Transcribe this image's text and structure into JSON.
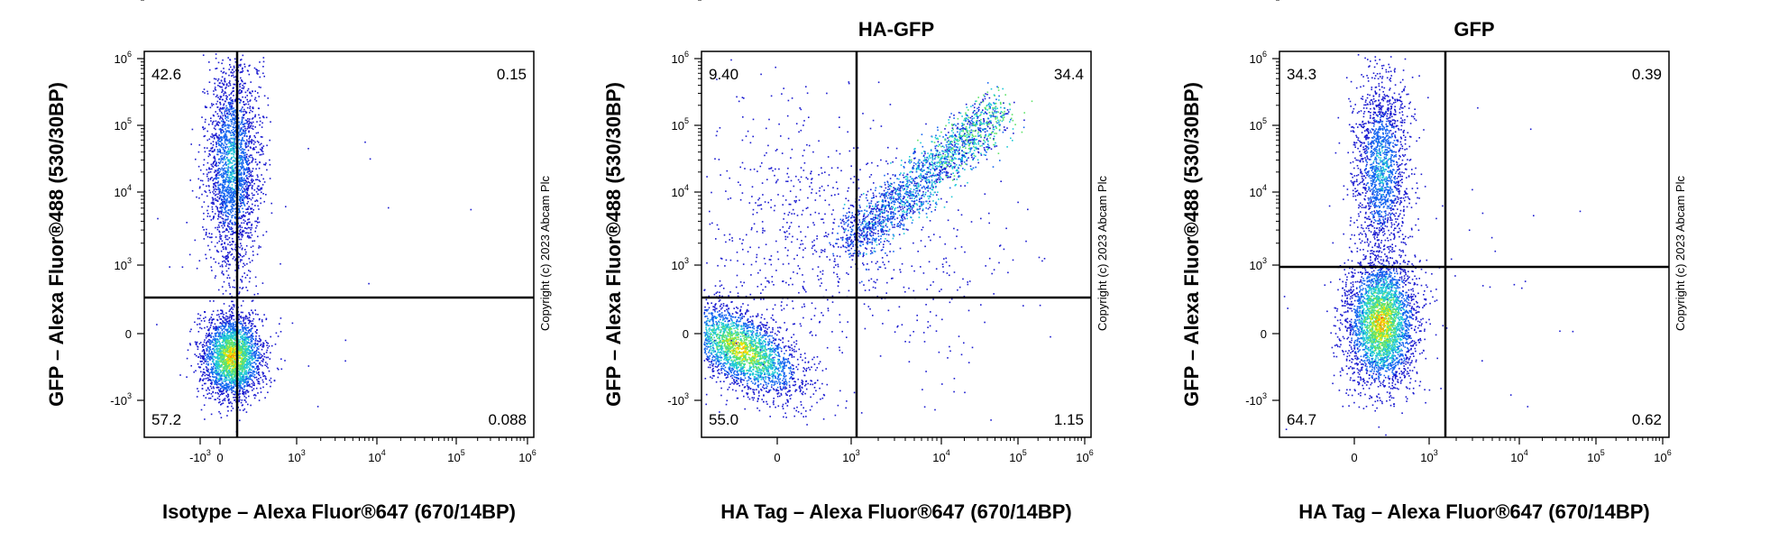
{
  "figure": {
    "copyright": "Copyright (c) 2023 Abcam Plc"
  },
  "chart_data": [
    {
      "type": "scatter",
      "title": "",
      "xlabel": "Isotype – Alexa Fluor®647 (670/14BP)",
      "ylabel": "GFP – Alexa Fluor®488 (530/30BP)",
      "x_ticks": [
        "-10^3",
        "0",
        "10^3",
        "10^4",
        "10^5",
        "10^6"
      ],
      "y_ticks": [
        "-10^3",
        "0",
        "10^3",
        "10^4",
        "10^5",
        "10^6"
      ],
      "x_scale": "biexponential",
      "y_scale": "biexponential",
      "gate": {
        "x": 1000,
        "y": 400
      },
      "quadrants": {
        "upper_left": "42.6",
        "upper_right": "0.15",
        "lower_left": "57.2",
        "lower_right": "0.088"
      },
      "populations": [
        {
          "description": "upper-left cluster",
          "x_center": 250,
          "y_center": 15000,
          "fraction": 0.426
        },
        {
          "description": "lower-left cluster",
          "x_center": 250,
          "y_center": -700,
          "fraction": 0.572
        }
      ]
    },
    {
      "type": "scatter",
      "title": "HA-GFP",
      "xlabel": "HA Tag – Alexa Fluor®647 (670/14BP)",
      "ylabel": "GFP – Alexa Fluor®488 (530/30BP)",
      "x_ticks": [
        "0",
        "10^3",
        "10^4",
        "10^5",
        "10^6"
      ],
      "y_ticks": [
        "-10^3",
        "0",
        "10^3",
        "10^4",
        "10^5",
        "10^6"
      ],
      "x_scale": "biexponential",
      "y_scale": "biexponential",
      "gate": {
        "x": 1000,
        "y": 400
      },
      "quadrants": {
        "upper_left": "9.40",
        "upper_right": "34.4",
        "lower_left": "55.0",
        "lower_right": "1.15"
      },
      "populations": [
        {
          "description": "double-negative cluster",
          "x_center": -300,
          "y_center": -400,
          "fraction": 0.55
        },
        {
          "description": "diagonal HA+/GFP+ population",
          "x_range": [
            1000,
            100000
          ],
          "y_range": [
            1000,
            60000
          ],
          "fraction": 0.344
        },
        {
          "description": "GFP+ HA- scatter",
          "x_center": 200,
          "y_center": 3000,
          "fraction": 0.094
        }
      ]
    },
    {
      "type": "scatter",
      "title": "GFP",
      "xlabel": "HA Tag – Alexa Fluor®647 (670/14BP)",
      "ylabel": "GFP – Alexa Fluor®488 (530/30BP)",
      "x_ticks": [
        "0",
        "10^3",
        "10^4",
        "10^5",
        "10^6"
      ],
      "y_ticks": [
        "-10^3",
        "0",
        "10^3",
        "10^4",
        "10^5",
        "10^6"
      ],
      "x_scale": "biexponential",
      "y_scale": "biexponential",
      "gate": {
        "x": 1500,
        "y": 800
      },
      "quadrants": {
        "upper_left": "34.3",
        "upper_right": "0.39",
        "lower_left": "64.7",
        "lower_right": "0.62"
      },
      "populations": [
        {
          "description": "GFP+ HA- cluster",
          "x_center": 550,
          "y_center": 8000,
          "fraction": 0.343
        },
        {
          "description": "double-negative cluster",
          "x_center": 550,
          "y_center": 0,
          "fraction": 0.647
        }
      ]
    }
  ]
}
